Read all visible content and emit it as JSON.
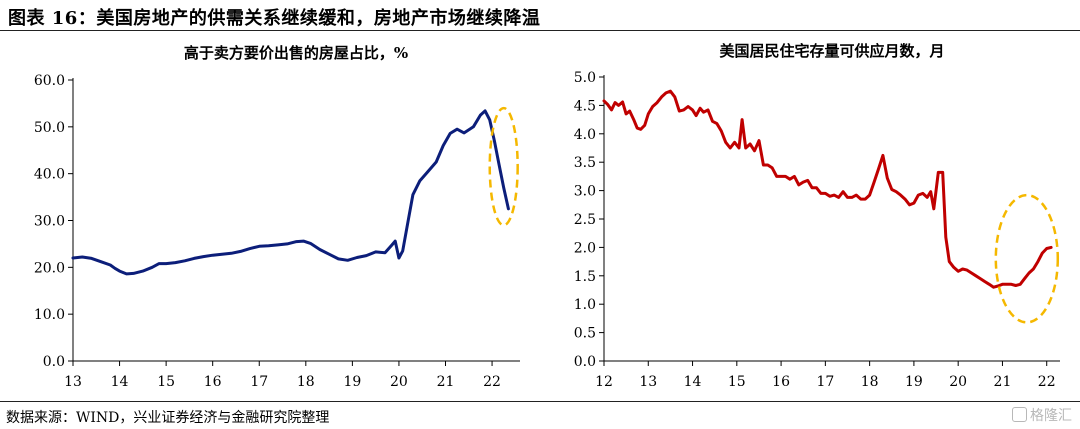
{
  "figure_title": "图表 16：美国房地产的供需关系继续缓和，房地产市场继续降温",
  "source": "数据来源：WIND，兴业证券经济与金融研究院整理",
  "watermark": "格隆汇",
  "chart_data": [
    {
      "type": "line",
      "title": "高于卖方要价出售的房屋占比，%",
      "xlabel": "",
      "ylabel": "",
      "ylim": [
        0,
        60
      ],
      "xlim": [
        13,
        22.6
      ],
      "grid": false,
      "yticks": [
        "0.0",
        "10.0",
        "20.0",
        "30.0",
        "40.0",
        "50.0",
        "60.0"
      ],
      "xticks": [
        "13",
        "14",
        "15",
        "16",
        "17",
        "18",
        "19",
        "20",
        "21",
        "22"
      ],
      "series": [
        {
          "color": "#0c1e7a",
          "x": [
            13.0,
            13.2,
            13.4,
            13.6,
            13.8,
            13.9,
            14.0,
            14.15,
            14.3,
            14.5,
            14.7,
            14.85,
            15.0,
            15.2,
            15.4,
            15.6,
            15.8,
            16.0,
            16.2,
            16.4,
            16.6,
            16.8,
            17.0,
            17.2,
            17.4,
            17.6,
            17.8,
            17.95,
            18.1,
            18.3,
            18.5,
            18.7,
            18.9,
            19.1,
            19.3,
            19.5,
            19.7,
            19.85,
            19.92,
            20.0,
            20.08,
            20.2,
            20.3,
            20.45,
            20.6,
            20.8,
            20.95,
            21.1,
            21.25,
            21.4,
            21.6,
            21.75,
            21.85,
            21.95,
            22.05,
            22.15,
            22.25,
            22.35
          ],
          "y": [
            22.0,
            22.2,
            21.9,
            21.2,
            20.5,
            19.8,
            19.2,
            18.6,
            18.7,
            19.2,
            20.0,
            20.8,
            20.8,
            21.0,
            21.4,
            21.9,
            22.3,
            22.6,
            22.8,
            23.0,
            23.4,
            24.0,
            24.5,
            24.6,
            24.8,
            25.0,
            25.5,
            25.6,
            25.1,
            23.8,
            22.8,
            21.8,
            21.5,
            22.1,
            22.5,
            23.3,
            23.1,
            24.8,
            25.6,
            22.0,
            23.5,
            30.0,
            35.5,
            38.5,
            40.2,
            42.5,
            46.0,
            48.6,
            49.5,
            48.7,
            50.0,
            52.5,
            53.4,
            51.5,
            47.0,
            42.0,
            37.0,
            32.5
          ]
        }
      ],
      "annotations": [
        {
          "shape": "dashed-ellipse",
          "color": "#f5b800",
          "x": 22.25,
          "y": 41.5,
          "rx": 0.3,
          "ry": 12.5
        }
      ]
    },
    {
      "type": "line",
      "title": "美国居民住宅存量可供应月数，月",
      "xlabel": "",
      "ylabel": "",
      "ylim": [
        0,
        5
      ],
      "xlim": [
        12,
        22.3
      ],
      "grid": false,
      "yticks": [
        "0.0",
        "0.5",
        "1.0",
        "1.5",
        "2.0",
        "2.5",
        "3.0",
        "3.5",
        "4.0",
        "4.5",
        "5.0"
      ],
      "xticks": [
        "12",
        "13",
        "14",
        "15",
        "16",
        "17",
        "18",
        "19",
        "20",
        "21",
        "22"
      ],
      "series": [
        {
          "color": "#c00000",
          "x": [
            12.0,
            12.08,
            12.17,
            12.25,
            12.33,
            12.42,
            12.5,
            12.58,
            12.67,
            12.75,
            12.83,
            12.92,
            13.0,
            13.1,
            13.2,
            13.3,
            13.4,
            13.5,
            13.6,
            13.7,
            13.8,
            13.9,
            14.0,
            14.08,
            14.17,
            14.25,
            14.35,
            14.45,
            14.55,
            14.65,
            14.75,
            14.85,
            14.95,
            15.05,
            15.12,
            15.2,
            15.3,
            15.4,
            15.5,
            15.6,
            15.7,
            15.8,
            15.9,
            16.0,
            16.1,
            16.2,
            16.3,
            16.4,
            16.5,
            16.6,
            16.7,
            16.8,
            16.9,
            17.0,
            17.1,
            17.2,
            17.3,
            17.4,
            17.5,
            17.6,
            17.7,
            17.8,
            17.9,
            18.0,
            18.1,
            18.2,
            18.3,
            18.4,
            18.5,
            18.6,
            18.7,
            18.8,
            18.9,
            19.0,
            19.1,
            19.2,
            19.3,
            19.38,
            19.45,
            19.55,
            19.65,
            19.72,
            19.8,
            19.9,
            20.0,
            20.1,
            20.2,
            20.3,
            20.4,
            20.5,
            20.6,
            20.7,
            20.8,
            20.9,
            21.0,
            21.1,
            21.2,
            21.3,
            21.4,
            21.5,
            21.6,
            21.7,
            21.8,
            21.9,
            22.0,
            22.1
          ],
          "y": [
            4.58,
            4.52,
            4.42,
            4.55,
            4.5,
            4.56,
            4.35,
            4.4,
            4.25,
            4.1,
            4.08,
            4.15,
            4.35,
            4.48,
            4.55,
            4.65,
            4.72,
            4.75,
            4.65,
            4.4,
            4.42,
            4.48,
            4.42,
            4.32,
            4.45,
            4.38,
            4.42,
            4.22,
            4.18,
            4.05,
            3.85,
            3.75,
            3.85,
            3.75,
            4.25,
            3.75,
            3.82,
            3.7,
            3.88,
            3.45,
            3.45,
            3.4,
            3.25,
            3.25,
            3.25,
            3.2,
            3.25,
            3.1,
            3.15,
            3.18,
            3.05,
            3.05,
            2.95,
            2.95,
            2.9,
            2.92,
            2.88,
            2.98,
            2.88,
            2.88,
            2.92,
            2.85,
            2.85,
            2.92,
            3.15,
            3.38,
            3.62,
            3.22,
            3.02,
            2.98,
            2.92,
            2.85,
            2.75,
            2.78,
            2.92,
            2.95,
            2.88,
            2.98,
            2.68,
            3.32,
            3.32,
            2.18,
            1.75,
            1.65,
            1.58,
            1.62,
            1.6,
            1.55,
            1.5,
            1.45,
            1.4,
            1.35,
            1.3,
            1.32,
            1.35,
            1.35,
            1.35,
            1.33,
            1.35,
            1.45,
            1.55,
            1.62,
            1.75,
            1.9,
            1.98,
            2.0
          ]
        }
      ],
      "annotations": [
        {
          "shape": "dashed-ellipse",
          "color": "#f5b800",
          "x": 21.55,
          "y": 1.8,
          "rx": 0.7,
          "ry": 1.12
        }
      ]
    }
  ]
}
